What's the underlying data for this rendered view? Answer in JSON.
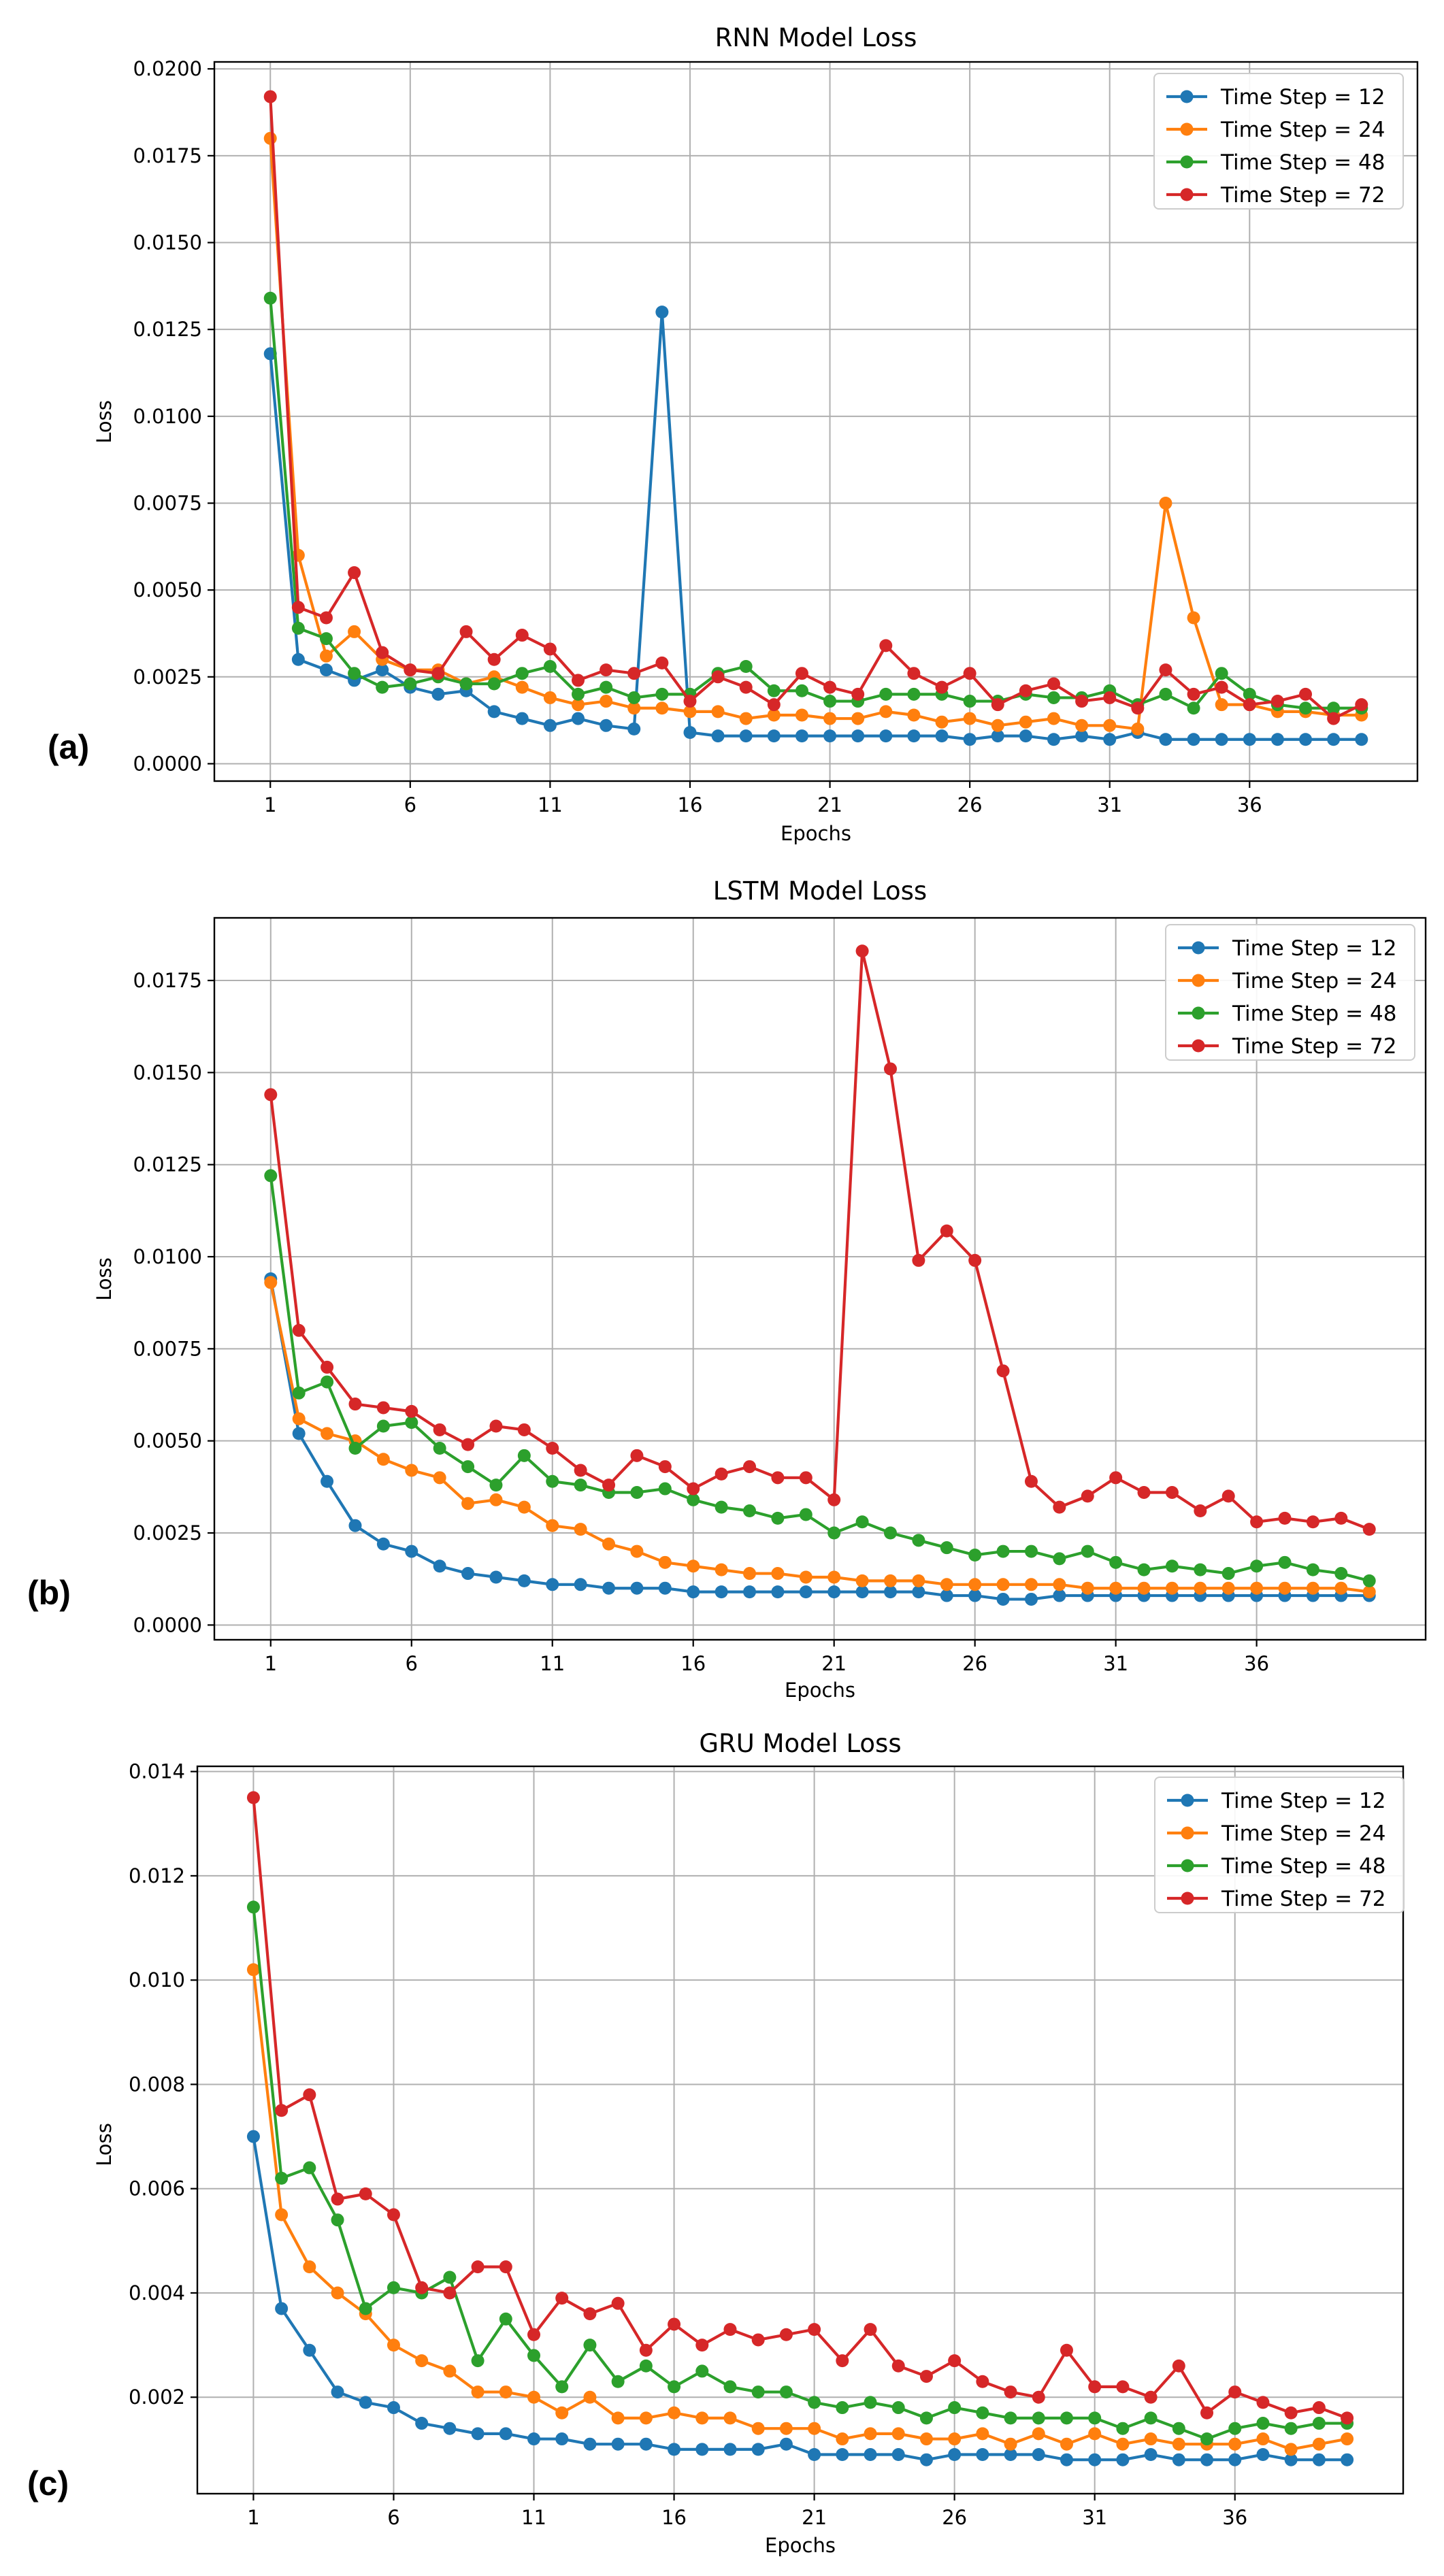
{
  "panel_labels": [
    "(a)",
    "(b)",
    "(c)"
  ],
  "chart_data": [
    {
      "type": "line",
      "title": "RNN Model Loss",
      "xlabel": "Epochs",
      "ylabel": "Loss",
      "xlim": [
        -1,
        42
      ],
      "ylim": [
        -0.0005,
        0.0202
      ],
      "xticks": [
        1,
        6,
        11,
        16,
        21,
        26,
        31,
        36
      ],
      "yticks": [
        0.0,
        0.0025,
        0.005,
        0.0075,
        0.01,
        0.0125,
        0.015,
        0.0175,
        0.02
      ],
      "ytick_labels": [
        "0.0000",
        "0.0025",
        "0.0050",
        "0.0075",
        "0.0100",
        "0.0125",
        "0.0150",
        "0.0175",
        "0.0200"
      ],
      "grid": true,
      "legend_position": "top-right",
      "x": [
        1,
        2,
        3,
        4,
        5,
        6,
        7,
        8,
        9,
        10,
        11,
        12,
        13,
        14,
        15,
        16,
        17,
        18,
        19,
        20,
        21,
        22,
        23,
        24,
        25,
        26,
        27,
        28,
        29,
        30,
        31,
        32,
        33,
        34,
        35,
        36,
        37,
        38,
        39,
        40
      ],
      "series": [
        {
          "name": "Time Step = 12",
          "color": "#1f77b4",
          "values": [
            0.0118,
            0.003,
            0.0027,
            0.0024,
            0.0027,
            0.0022,
            0.002,
            0.0021,
            0.0015,
            0.0013,
            0.0011,
            0.0013,
            0.0011,
            0.001,
            0.013,
            0.0009,
            0.0008,
            0.0008,
            0.0008,
            0.0008,
            0.0008,
            0.0008,
            0.0008,
            0.0008,
            0.0008,
            0.0007,
            0.0008,
            0.0008,
            0.0007,
            0.0008,
            0.0007,
            0.0009,
            0.0007,
            0.0007,
            0.0007,
            0.0007,
            0.0007,
            0.0007,
            0.0007,
            0.0007
          ]
        },
        {
          "name": "Time Step = 24",
          "color": "#ff7f0e",
          "values": [
            0.018,
            0.006,
            0.0031,
            0.0038,
            0.003,
            0.0027,
            0.0027,
            0.0023,
            0.0025,
            0.0022,
            0.0019,
            0.0017,
            0.0018,
            0.0016,
            0.0016,
            0.0015,
            0.0015,
            0.0013,
            0.0014,
            0.0014,
            0.0013,
            0.0013,
            0.0015,
            0.0014,
            0.0012,
            0.0013,
            0.0011,
            0.0012,
            0.0013,
            0.0011,
            0.0011,
            0.001,
            0.0075,
            0.0042,
            0.0017,
            0.0017,
            0.0015,
            0.0015,
            0.0014,
            0.0014
          ]
        },
        {
          "name": "Time Step = 48",
          "color": "#2ca02c",
          "values": [
            0.0134,
            0.0039,
            0.0036,
            0.0026,
            0.0022,
            0.0023,
            0.0025,
            0.0023,
            0.0023,
            0.0026,
            0.0028,
            0.002,
            0.0022,
            0.0019,
            0.002,
            0.002,
            0.0026,
            0.0028,
            0.0021,
            0.0021,
            0.0018,
            0.0018,
            0.002,
            0.002,
            0.002,
            0.0018,
            0.0018,
            0.002,
            0.0019,
            0.0019,
            0.0021,
            0.0017,
            0.002,
            0.0016,
            0.0026,
            0.002,
            0.0017,
            0.0016,
            0.0016,
            0.0016
          ]
        },
        {
          "name": "Time Step = 72",
          "color": "#d62728",
          "values": [
            0.0192,
            0.0045,
            0.0042,
            0.0055,
            0.0032,
            0.0027,
            0.0026,
            0.0038,
            0.003,
            0.0037,
            0.0033,
            0.0024,
            0.0027,
            0.0026,
            0.0029,
            0.0018,
            0.0025,
            0.0022,
            0.0017,
            0.0026,
            0.0022,
            0.002,
            0.0034,
            0.0026,
            0.0022,
            0.0026,
            0.0017,
            0.0021,
            0.0023,
            0.0018,
            0.0019,
            0.0016,
            0.0027,
            0.002,
            0.0022,
            0.0017,
            0.0018,
            0.002,
            0.0013,
            0.0017
          ]
        }
      ]
    },
    {
      "type": "line",
      "title": "LSTM Model Loss",
      "xlabel": "Epochs",
      "ylabel": "Loss",
      "xlim": [
        -1,
        42
      ],
      "ylim": [
        -0.0004,
        0.0192
      ],
      "xticks": [
        1,
        6,
        11,
        16,
        21,
        26,
        31,
        36
      ],
      "yticks": [
        0.0,
        0.0025,
        0.005,
        0.0075,
        0.01,
        0.0125,
        0.015,
        0.0175
      ],
      "ytick_labels": [
        "0.0000",
        "0.0025",
        "0.0050",
        "0.0075",
        "0.0100",
        "0.0125",
        "0.0150",
        "0.0175"
      ],
      "grid": true,
      "legend_position": "top-right",
      "x": [
        1,
        2,
        3,
        4,
        5,
        6,
        7,
        8,
        9,
        10,
        11,
        12,
        13,
        14,
        15,
        16,
        17,
        18,
        19,
        20,
        21,
        22,
        23,
        24,
        25,
        26,
        27,
        28,
        29,
        30,
        31,
        32,
        33,
        34,
        35,
        36,
        37,
        38,
        39,
        40
      ],
      "series": [
        {
          "name": "Time Step = 12",
          "color": "#1f77b4",
          "values": [
            0.0094,
            0.0052,
            0.0039,
            0.0027,
            0.0022,
            0.002,
            0.0016,
            0.0014,
            0.0013,
            0.0012,
            0.0011,
            0.0011,
            0.001,
            0.001,
            0.001,
            0.0009,
            0.0009,
            0.0009,
            0.0009,
            0.0009,
            0.0009,
            0.0009,
            0.0009,
            0.0009,
            0.0008,
            0.0008,
            0.0007,
            0.0007,
            0.0008,
            0.0008,
            0.0008,
            0.0008,
            0.0008,
            0.0008,
            0.0008,
            0.0008,
            0.0008,
            0.0008,
            0.0008,
            0.0008
          ]
        },
        {
          "name": "Time Step = 24",
          "color": "#ff7f0e",
          "values": [
            0.0093,
            0.0056,
            0.0052,
            0.005,
            0.0045,
            0.0042,
            0.004,
            0.0033,
            0.0034,
            0.0032,
            0.0027,
            0.0026,
            0.0022,
            0.002,
            0.0017,
            0.0016,
            0.0015,
            0.0014,
            0.0014,
            0.0013,
            0.0013,
            0.0012,
            0.0012,
            0.0012,
            0.0011,
            0.0011,
            0.0011,
            0.0011,
            0.0011,
            0.001,
            0.001,
            0.001,
            0.001,
            0.001,
            0.001,
            0.001,
            0.001,
            0.001,
            0.001,
            0.0009
          ]
        },
        {
          "name": "Time Step = 48",
          "color": "#2ca02c",
          "values": [
            0.0122,
            0.0063,
            0.0066,
            0.0048,
            0.0054,
            0.0055,
            0.0048,
            0.0043,
            0.0038,
            0.0046,
            0.0039,
            0.0038,
            0.0036,
            0.0036,
            0.0037,
            0.0034,
            0.0032,
            0.0031,
            0.0029,
            0.003,
            0.0025,
            0.0028,
            0.0025,
            0.0023,
            0.0021,
            0.0019,
            0.002,
            0.002,
            0.0018,
            0.002,
            0.0017,
            0.0015,
            0.0016,
            0.0015,
            0.0014,
            0.0016,
            0.0017,
            0.0015,
            0.0014,
            0.0012
          ]
        },
        {
          "name": "Time Step = 72",
          "color": "#d62728",
          "values": [
            0.0144,
            0.008,
            0.007,
            0.006,
            0.0059,
            0.0058,
            0.0053,
            0.0049,
            0.0054,
            0.0053,
            0.0048,
            0.0042,
            0.0038,
            0.0046,
            0.0043,
            0.0037,
            0.0041,
            0.0043,
            0.004,
            0.004,
            0.0034,
            0.0183,
            0.0151,
            0.0099,
            0.0107,
            0.0099,
            0.0069,
            0.0039,
            0.0032,
            0.0035,
            0.004,
            0.0036,
            0.0036,
            0.0031,
            0.0035,
            0.0028,
            0.0029,
            0.0028,
            0.0029,
            0.0026
          ]
        }
      ]
    },
    {
      "type": "line",
      "title": "GRU Model Loss",
      "xlabel": "Epochs",
      "ylabel": "Loss",
      "xlim": [
        -1,
        42
      ],
      "ylim": [
        0.00015,
        0.0141
      ],
      "xticks": [
        1,
        6,
        11,
        16,
        21,
        26,
        31,
        36
      ],
      "yticks": [
        0.002,
        0.004,
        0.006,
        0.008,
        0.01,
        0.012,
        0.014
      ],
      "ytick_labels": [
        "0.002",
        "0.004",
        "0.006",
        "0.008",
        "0.010",
        "0.012",
        "0.014"
      ],
      "grid": true,
      "legend_position": "top-right",
      "x": [
        1,
        2,
        3,
        4,
        5,
        6,
        7,
        8,
        9,
        10,
        11,
        12,
        13,
        14,
        15,
        16,
        17,
        18,
        19,
        20,
        21,
        22,
        23,
        24,
        25,
        26,
        27,
        28,
        29,
        30,
        31,
        32,
        33,
        34,
        35,
        36,
        37,
        38,
        39,
        40
      ],
      "series": [
        {
          "name": "Time Step = 12",
          "color": "#1f77b4",
          "values": [
            0.007,
            0.0037,
            0.0029,
            0.0021,
            0.0019,
            0.0018,
            0.0015,
            0.0014,
            0.0013,
            0.0013,
            0.0012,
            0.0012,
            0.0011,
            0.0011,
            0.0011,
            0.001,
            0.001,
            0.001,
            0.001,
            0.0011,
            0.0009,
            0.0009,
            0.0009,
            0.0009,
            0.0008,
            0.0009,
            0.0009,
            0.0009,
            0.0009,
            0.0008,
            0.0008,
            0.0008,
            0.0009,
            0.0008,
            0.0008,
            0.0008,
            0.0009,
            0.0008,
            0.0008,
            0.0008
          ]
        },
        {
          "name": "Time Step = 24",
          "color": "#ff7f0e",
          "values": [
            0.0102,
            0.0055,
            0.0045,
            0.004,
            0.0036,
            0.003,
            0.0027,
            0.0025,
            0.0021,
            0.0021,
            0.002,
            0.0017,
            0.002,
            0.0016,
            0.0016,
            0.0017,
            0.0016,
            0.0016,
            0.0014,
            0.0014,
            0.0014,
            0.0012,
            0.0013,
            0.0013,
            0.0012,
            0.0012,
            0.0013,
            0.0011,
            0.0013,
            0.0011,
            0.0013,
            0.0011,
            0.0012,
            0.0011,
            0.0011,
            0.0011,
            0.0012,
            0.001,
            0.0011,
            0.0012
          ]
        },
        {
          "name": "Time Step = 48",
          "color": "#2ca02c",
          "values": [
            0.0114,
            0.0062,
            0.0064,
            0.0054,
            0.0037,
            0.0041,
            0.004,
            0.0043,
            0.0027,
            0.0035,
            0.0028,
            0.0022,
            0.003,
            0.0023,
            0.0026,
            0.0022,
            0.0025,
            0.0022,
            0.0021,
            0.0021,
            0.0019,
            0.0018,
            0.0019,
            0.0018,
            0.0016,
            0.0018,
            0.0017,
            0.0016,
            0.0016,
            0.0016,
            0.0016,
            0.0014,
            0.0016,
            0.0014,
            0.0012,
            0.0014,
            0.0015,
            0.0014,
            0.0015,
            0.0015
          ]
        },
        {
          "name": "Time Step = 72",
          "color": "#d62728",
          "values": [
            0.0135,
            0.0075,
            0.0078,
            0.0058,
            0.0059,
            0.0055,
            0.0041,
            0.004,
            0.0045,
            0.0045,
            0.0032,
            0.0039,
            0.0036,
            0.0038,
            0.0029,
            0.0034,
            0.003,
            0.0033,
            0.0031,
            0.0032,
            0.0033,
            0.0027,
            0.0033,
            0.0026,
            0.0024,
            0.0027,
            0.0023,
            0.0021,
            0.002,
            0.0029,
            0.0022,
            0.0022,
            0.002,
            0.0026,
            0.0017,
            0.0021,
            0.0019,
            0.0017,
            0.0018,
            0.0016
          ]
        }
      ]
    }
  ]
}
